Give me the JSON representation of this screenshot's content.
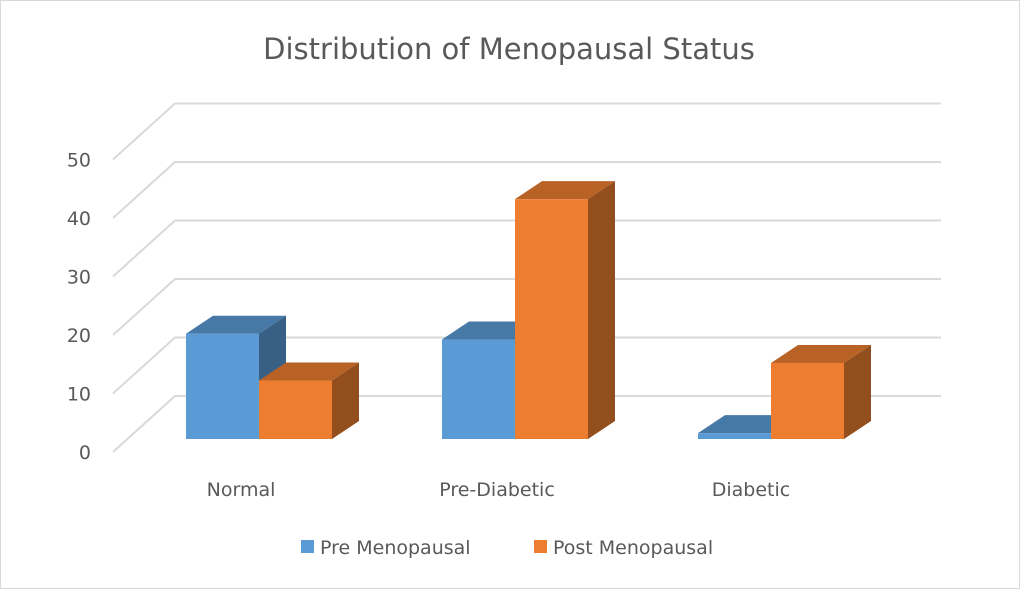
{
  "chart_data": {
    "type": "bar",
    "title": "Distribution of  Menopausal Status",
    "xlabel": "",
    "ylabel": "",
    "categories": [
      "Normal",
      "Pre-Diabetic",
      "Diabetic"
    ],
    "series": [
      {
        "name": "Pre Menopausal",
        "values": [
          18,
          17,
          1
        ],
        "color": "#5B9BD5"
      },
      {
        "name": "Post Menopausal",
        "values": [
          10,
          41,
          13
        ],
        "color": "#ED7D31"
      }
    ],
    "ylim": [
      0,
      50
    ],
    "yticks": [
      "0",
      "10",
      "20",
      "30",
      "40",
      "50"
    ],
    "grid": true,
    "style": "3d-clustered-column",
    "legend_position": "bottom"
  }
}
